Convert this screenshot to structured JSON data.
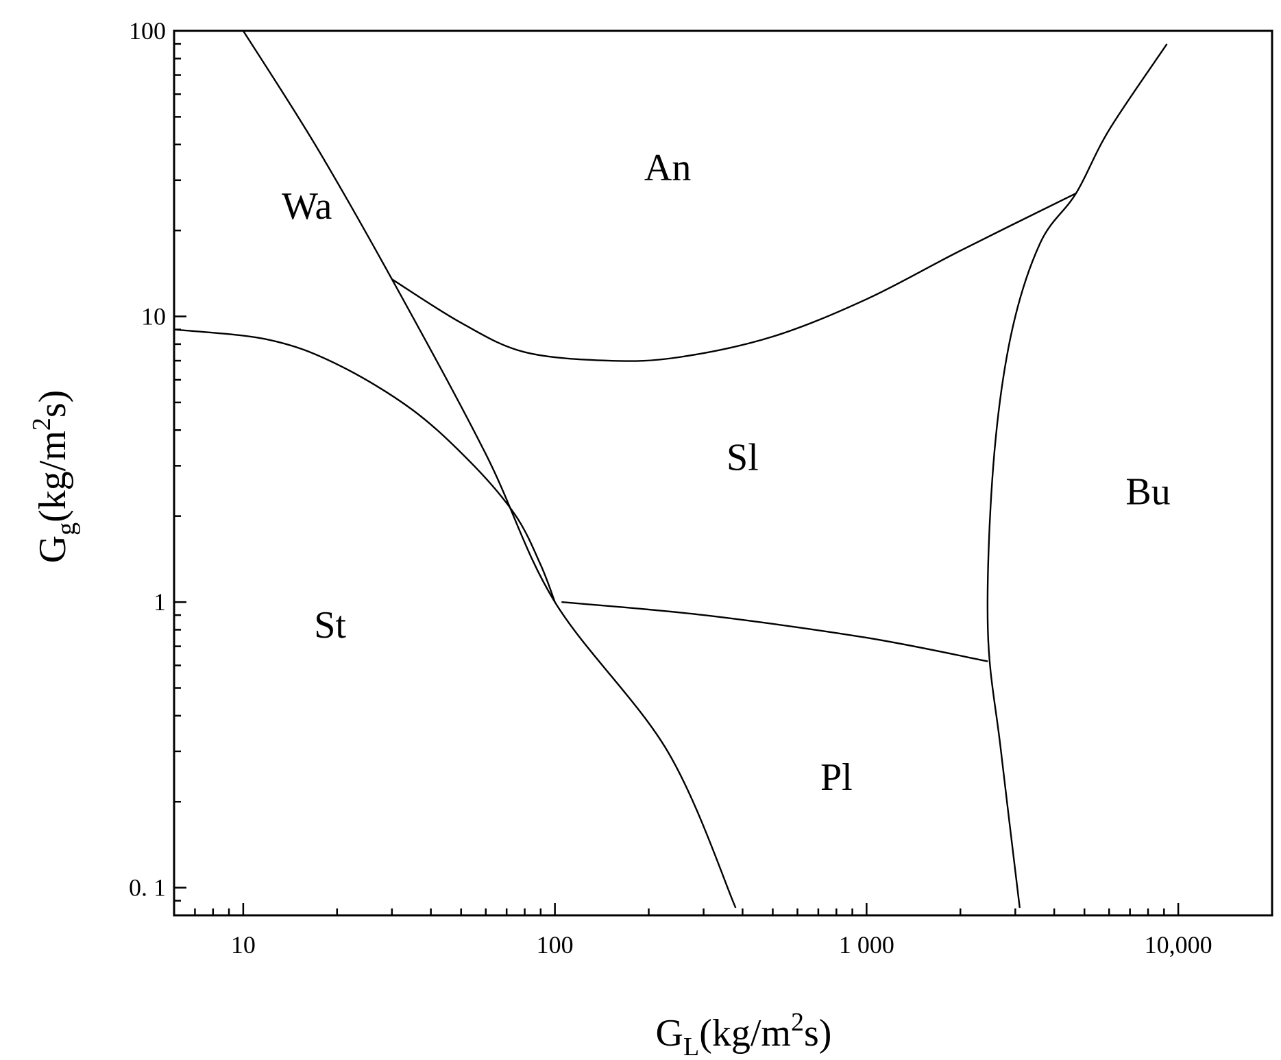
{
  "chart_data": {
    "type": "line",
    "xscale": "log",
    "yscale": "log",
    "xlim": [
      6,
      20000
    ],
    "ylim": [
      0.08,
      100
    ],
    "xticks": [
      {
        "value": 10,
        "label": "10"
      },
      {
        "value": 100,
        "label": "100"
      },
      {
        "value": 1000,
        "label": "1 000"
      },
      {
        "value": 10000,
        "label": "10,000"
      }
    ],
    "yticks": [
      {
        "value": 0.1,
        "label": "0. 1"
      },
      {
        "value": 1,
        "label": "1"
      },
      {
        "value": 10,
        "label": "10"
      },
      {
        "value": 100,
        "label": "100"
      }
    ],
    "xlabel": {
      "main": "G",
      "sub": "L",
      "rest1": "(kg/m",
      "sup": "2",
      "rest2": "s)"
    },
    "ylabel": {
      "main": "G",
      "sub": "g",
      "rest1": "(kg/m",
      "sup": "2",
      "rest2": "s)"
    },
    "grid": false,
    "regions": [
      {
        "label": "An",
        "x": 230,
        "y": 30
      },
      {
        "label": "Wa",
        "x": 16,
        "y": 22
      },
      {
        "label": "Sl",
        "x": 400,
        "y": 2.9
      },
      {
        "label": "Bu",
        "x": 8000,
        "y": 2.2
      },
      {
        "label": "St",
        "x": 19,
        "y": 0.75
      },
      {
        "label": "Pl",
        "x": 800,
        "y": 0.22
      }
    ],
    "boundaries": [
      {
        "name": "",
        "points": [
          [
            10,
            100
          ],
          [
            17,
            40
          ],
          [
            30,
            13.5
          ],
          [
            60,
            3.3
          ],
          [
            100,
            1.0
          ],
          [
            230,
            0.3
          ],
          [
            380,
            0.085
          ]
        ]
      },
      {
        "name": "",
        "points": [
          [
            6,
            9
          ],
          [
            12,
            8.3
          ],
          [
            20,
            6.8
          ],
          [
            35,
            4.7
          ],
          [
            55,
            3.0
          ],
          [
            75,
            2.0
          ],
          [
            90,
            1.35
          ],
          [
            100,
            1.0
          ]
        ]
      },
      {
        "name": "",
        "points": [
          [
            30,
            13.5
          ],
          [
            50,
            9.5
          ],
          [
            80,
            7.5
          ],
          [
            150,
            7.0
          ],
          [
            250,
            7.2
          ],
          [
            500,
            8.5
          ],
          [
            1000,
            11.5
          ],
          [
            2000,
            17
          ],
          [
            4700,
            27
          ]
        ]
      },
      {
        "name": "",
        "points": [
          [
            105,
            1.0
          ],
          [
            300,
            0.9
          ],
          [
            1000,
            0.75
          ],
          [
            2450,
            0.62
          ]
        ]
      },
      {
        "name": "",
        "points": [
          [
            3100,
            0.085
          ],
          [
            2700,
            0.3
          ],
          [
            2450,
            0.8
          ],
          [
            2550,
            3.0
          ],
          [
            2900,
            8.5
          ],
          [
            3600,
            18
          ],
          [
            4700,
            27
          ],
          [
            6000,
            45
          ],
          [
            9200,
            90
          ]
        ]
      }
    ]
  }
}
